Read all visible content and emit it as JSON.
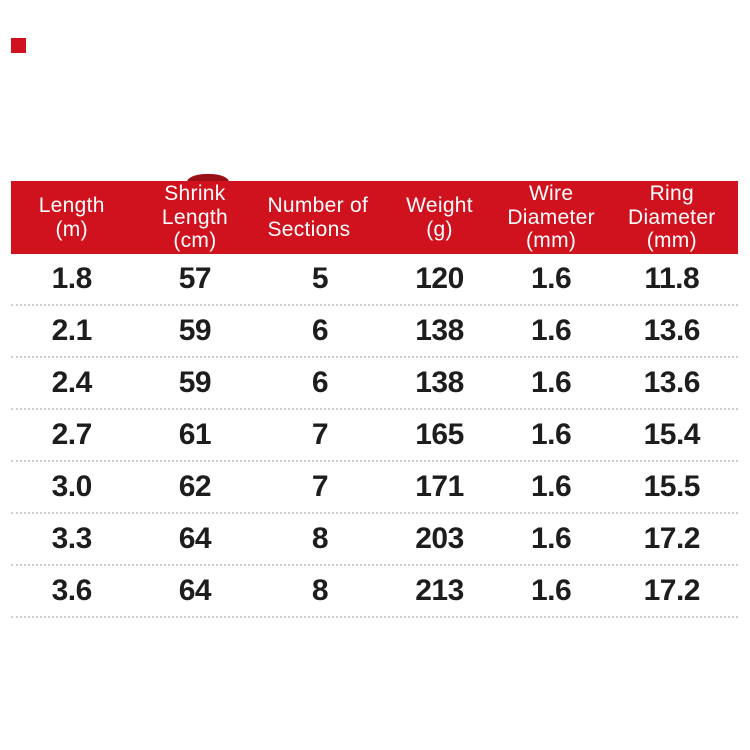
{
  "colors": {
    "header_red": "#d0121f",
    "artifact_dark_red": "#9b1016",
    "marker_red": "#cf1120",
    "data_text": "#1d1d1d",
    "separator_gray": "#cdcdcd",
    "header_text": "#ffffff",
    "background": "#ffffff"
  },
  "table": {
    "header": {
      "cols": [
        {
          "label": "Length (m)",
          "lines": [
            "Length",
            "(m)"
          ]
        },
        {
          "label": "Shrink Length (cm)",
          "lines": [
            "Shrink",
            "Length",
            "(cm)"
          ]
        },
        {
          "label": "Number of Sections",
          "lines": [
            "Number of",
            "Sections"
          ]
        },
        {
          "label": "Weight (g)",
          "lines": [
            "Weight",
            "(g)"
          ]
        },
        {
          "label": "Wire Diameter (mm)",
          "lines": [
            "Wire",
            "Diameter",
            "(mm)"
          ]
        },
        {
          "label": "Ring Diameter (mm)",
          "lines": [
            "Ring",
            "Diameter",
            "(mm)"
          ]
        }
      ]
    },
    "rows": [
      [
        "1.8",
        "57",
        "5",
        "120",
        "1.6",
        "11.8"
      ],
      [
        "2.1",
        "59",
        "6",
        "138",
        "1.6",
        "13.6"
      ],
      [
        "2.4",
        "59",
        "6",
        "138",
        "1.6",
        "13.6"
      ],
      [
        "2.7",
        "61",
        "7",
        "165",
        "1.6",
        "15.4"
      ],
      [
        "3.0",
        "62",
        "7",
        "171",
        "1.6",
        "15.5"
      ],
      [
        "3.3",
        "64",
        "8",
        "203",
        "1.6",
        "17.2"
      ],
      [
        "3.6",
        "64",
        "8",
        "213",
        "1.6",
        "17.2"
      ]
    ]
  },
  "chart_data": {
    "type": "table",
    "columns": [
      "Length (m)",
      "Shrink Length (cm)",
      "Number of Sections",
      "Weight (g)",
      "Wire Diameter (mm)",
      "Ring Diameter (mm)"
    ],
    "rows": [
      [
        "1.8",
        "57",
        "5",
        "120",
        "1.6",
        "11.8"
      ],
      [
        "2.1",
        "59",
        "6",
        "138",
        "1.6",
        "13.6"
      ],
      [
        "2.4",
        "59",
        "6",
        "138",
        "1.6",
        "13.6"
      ],
      [
        "2.7",
        "61",
        "7",
        "165",
        "1.6",
        "15.4"
      ],
      [
        "3.0",
        "62",
        "7",
        "171",
        "1.6",
        "15.5"
      ],
      [
        "3.3",
        "64",
        "8",
        "203",
        "1.6",
        "17.2"
      ],
      [
        "3.6",
        "64",
        "8",
        "213",
        "1.6",
        "17.2"
      ]
    ]
  }
}
